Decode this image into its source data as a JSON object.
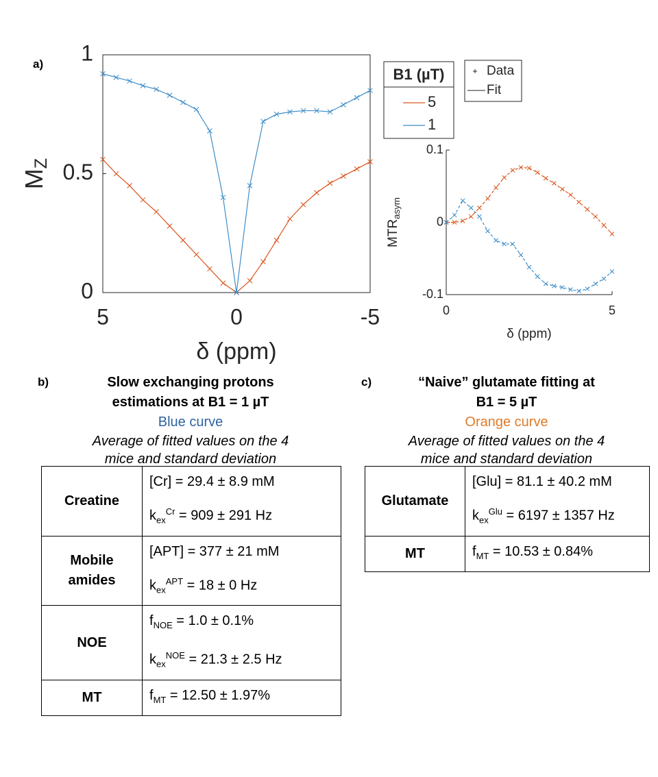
{
  "panel_labels": [
    "a)",
    "b)",
    "c)"
  ],
  "chart_data": [
    {
      "type": "line",
      "ylabel": "M",
      "ylabel_sub": "Z",
      "xlabel": "δ (ppm)",
      "xlim": [
        5,
        -5
      ],
      "xticks": [
        5,
        0,
        -5
      ],
      "ylim": [
        0,
        1
      ],
      "yticks": [
        0,
        0.5,
        1
      ],
      "frame": "box",
      "line_style": "solid",
      "legend_title": "B1 (µT)",
      "marker_legend": [
        "Data",
        "Fit"
      ],
      "x": [
        5,
        4.5,
        4,
        3.5,
        3,
        2.5,
        2,
        1.5,
        1,
        0.5,
        0,
        -0.5,
        -1,
        -1.5,
        -2,
        -2.5,
        -3,
        -3.5,
        -4,
        -4.5,
        -5
      ],
      "series": [
        {
          "name": "5",
          "color": "#d95319",
          "values": [
            0.56,
            0.5,
            0.45,
            0.39,
            0.34,
            0.28,
            0.22,
            0.16,
            0.1,
            0.04,
            0,
            0.05,
            0.13,
            0.22,
            0.31,
            0.37,
            0.42,
            0.46,
            0.49,
            0.52,
            0.55
          ]
        },
        {
          "name": "1",
          "color": "#3c8dc8",
          "values": [
            0.92,
            0.905,
            0.89,
            0.87,
            0.855,
            0.83,
            0.8,
            0.77,
            0.68,
            0.4,
            0,
            0.45,
            0.72,
            0.75,
            0.76,
            0.765,
            0.765,
            0.76,
            0.79,
            0.82,
            0.85
          ]
        }
      ]
    },
    {
      "type": "line",
      "ylabel": "MTR",
      "ylabel_sub": "asym",
      "xlabel": "δ (ppm)",
      "xlim": [
        0,
        5
      ],
      "xticks": [
        0,
        5
      ],
      "ylim": [
        -0.1,
        0.1
      ],
      "yticks": [
        -0.1,
        0,
        0.1
      ],
      "frame": "axes",
      "line_style": "dashed",
      "x": [
        0,
        0.25,
        0.5,
        0.75,
        1,
        1.25,
        1.5,
        1.75,
        2,
        2.25,
        2.5,
        2.75,
        3,
        3.25,
        3.5,
        3.75,
        4,
        4.25,
        4.5,
        4.75,
        5
      ],
      "series": [
        {
          "name": "5",
          "color": "#d95319",
          "values": [
            0,
            0,
            0.002,
            0.008,
            0.02,
            0.033,
            0.048,
            0.062,
            0.072,
            0.076,
            0.075,
            0.069,
            0.061,
            0.054,
            0.046,
            0.038,
            0.028,
            0.018,
            0.008,
            -0.004,
            -0.016
          ]
        },
        {
          "name": "1",
          "color": "#3c8dc8",
          "values": [
            0,
            0.01,
            0.03,
            0.02,
            0.008,
            -0.012,
            -0.025,
            -0.03,
            -0.03,
            -0.045,
            -0.062,
            -0.075,
            -0.085,
            -0.088,
            -0.09,
            -0.093,
            -0.095,
            -0.092,
            -0.085,
            -0.078,
            -0.068
          ]
        }
      ]
    }
  ],
  "tables": [
    {
      "title": [
        "Slow exchanging protons",
        "estimations at B1 = 1 µT"
      ],
      "curve": "Blue curve",
      "curve_color": "#2e64a0",
      "note": [
        "Average of fitted values on the 4",
        "mice and standard deviation"
      ],
      "rows": [
        {
          "label": [
            "Creatine"
          ],
          "lines": [
            {
              "text": "[Cr] = 29.4 ± 8.9 mM"
            },
            {
              "base": "k",
              "sub": "ex",
              "sup": "Cr",
              "text": " = 909 ± 291 Hz"
            }
          ]
        },
        {
          "label": [
            "Mobile",
            "amides"
          ],
          "lines": [
            {
              "text": "[APT] = 377 ± 21 mM"
            },
            {
              "base": "k",
              "sub": "ex",
              "sup": "APT",
              "text": " = 18 ± 0 Hz"
            }
          ]
        },
        {
          "label": [
            "NOE"
          ],
          "lines": [
            {
              "base": "f",
              "sub": "NOE",
              "text": " = 1.0 ± 0.1%"
            },
            {
              "base": "k",
              "sub": "ex",
              "sup": "NOE",
              "text": " = 21.3 ± 2.5 Hz"
            }
          ]
        },
        {
          "label": [
            "MT"
          ],
          "lines": [
            {
              "base": "f",
              "sub": "MT",
              "text": " = 12.50 ± 1.97%"
            }
          ]
        }
      ]
    },
    {
      "title": [
        "“Naive” glutamate fitting at",
        "B1 = 5 µT"
      ],
      "curve": "Orange curve",
      "curve_color": "#e07b28",
      "note": [
        "Average of fitted values on the 4",
        "mice and standard deviation"
      ],
      "rows": [
        {
          "label": [
            "Glutamate"
          ],
          "lines": [
            {
              "text": "[Glu] = 81.1 ± 40.2 mM"
            },
            {
              "base": "k",
              "sub": "ex",
              "sup": "Glu",
              "text": " = 6197 ± 1357 Hz"
            }
          ]
        },
        {
          "label": [
            "MT"
          ],
          "lines": [
            {
              "base": "f",
              "sub": "MT",
              "text": " = 10.53 ± 0.84%"
            }
          ]
        }
      ]
    }
  ]
}
